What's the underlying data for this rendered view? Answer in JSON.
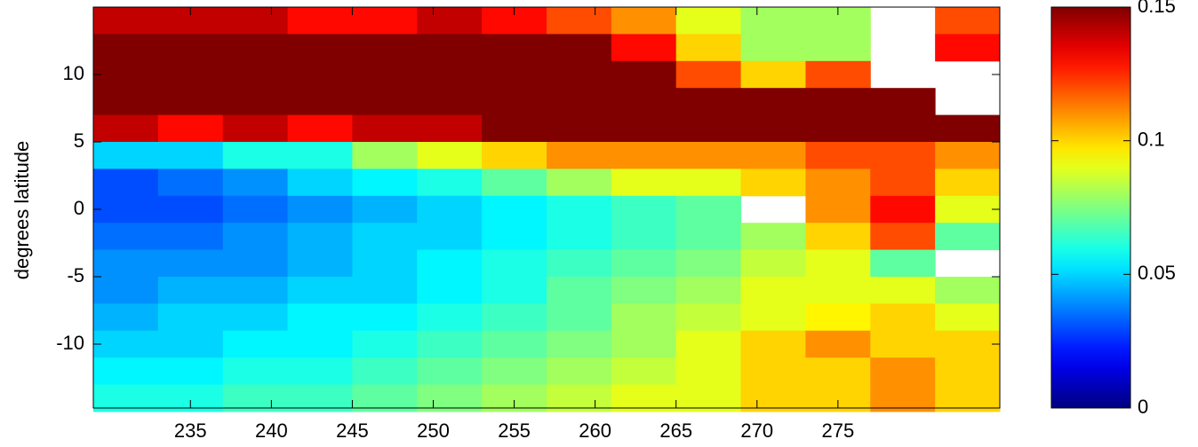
{
  "chart_data": {
    "type": "heatmap",
    "ylabel": "degrees latitude",
    "colormap": "jet",
    "x": [
      231,
      235,
      239,
      243,
      247,
      251,
      255,
      259,
      263,
      267,
      271,
      275,
      279,
      283
    ],
    "y": [
      14,
      12,
      10,
      8,
      6,
      4,
      2,
      0,
      -2,
      -4,
      -6,
      -8,
      -10,
      -12,
      -14
    ],
    "values": [
      [
        0.14,
        0.14,
        0.14,
        0.13,
        0.13,
        0.14,
        0.13,
        0.12,
        0.11,
        0.09,
        0.08,
        0.08,
        null,
        0.12
      ],
      [
        0.15,
        0.15,
        0.15,
        0.15,
        0.15,
        0.15,
        0.15,
        0.15,
        0.13,
        0.1,
        0.08,
        0.08,
        null,
        0.13
      ],
      [
        0.15,
        0.15,
        0.15,
        0.15,
        0.15,
        0.15,
        0.15,
        0.15,
        0.15,
        0.12,
        0.1,
        0.12,
        null,
        null
      ],
      [
        0.15,
        0.15,
        0.15,
        0.15,
        0.15,
        0.15,
        0.15,
        0.15,
        0.15,
        0.15,
        0.15,
        0.15,
        0.15,
        null
      ],
      [
        0.14,
        0.13,
        0.14,
        0.13,
        0.14,
        0.14,
        0.15,
        0.15,
        0.15,
        0.15,
        0.15,
        0.15,
        0.15,
        0.15
      ],
      [
        0.05,
        0.05,
        0.06,
        0.06,
        0.08,
        0.09,
        0.1,
        0.11,
        0.11,
        0.11,
        0.11,
        0.12,
        0.12,
        0.11
      ],
      [
        0.03,
        0.035,
        0.04,
        0.05,
        0.055,
        0.06,
        0.07,
        0.08,
        0.09,
        0.09,
        0.1,
        0.11,
        0.12,
        0.1
      ],
      [
        0.03,
        0.03,
        0.035,
        0.04,
        0.045,
        0.05,
        0.055,
        0.06,
        0.065,
        0.07,
        null,
        0.11,
        0.13,
        0.09
      ],
      [
        0.035,
        0.035,
        0.04,
        0.045,
        0.05,
        0.05,
        0.055,
        0.06,
        0.065,
        0.07,
        0.08,
        0.1,
        0.12,
        0.07
      ],
      [
        0.04,
        0.04,
        0.04,
        0.045,
        0.05,
        0.055,
        0.06,
        0.065,
        0.07,
        0.075,
        0.085,
        0.09,
        0.07,
        null
      ],
      [
        0.04,
        0.045,
        0.045,
        0.05,
        0.05,
        0.055,
        0.06,
        0.07,
        0.075,
        0.08,
        0.09,
        0.09,
        0.09,
        0.08
      ],
      [
        0.045,
        0.05,
        0.05,
        0.055,
        0.055,
        0.06,
        0.065,
        0.07,
        0.08,
        0.085,
        0.09,
        0.095,
        0.1,
        0.09
      ],
      [
        0.05,
        0.05,
        0.055,
        0.055,
        0.06,
        0.065,
        0.07,
        0.075,
        0.08,
        0.09,
        0.1,
        0.11,
        0.1,
        0.1
      ],
      [
        0.055,
        0.055,
        0.06,
        0.06,
        0.065,
        0.07,
        0.075,
        0.08,
        0.085,
        0.09,
        0.1,
        0.1,
        0.11,
        0.1
      ],
      [
        0.06,
        0.06,
        0.065,
        0.065,
        0.07,
        0.075,
        0.08,
        0.085,
        0.09,
        0.09,
        0.1,
        0.1,
        0.11,
        0.1
      ]
    ],
    "xlim": [
      229,
      285
    ],
    "xticks": [
      235,
      240,
      245,
      250,
      255,
      260,
      265,
      270,
      275
    ],
    "ylim": [
      -15,
      15
    ],
    "yticks": [
      -10,
      -5,
      0,
      5,
      10
    ],
    "clim": [
      0,
      0.15
    ],
    "cticks": [
      0,
      0.05,
      0.1,
      0.15
    ]
  }
}
